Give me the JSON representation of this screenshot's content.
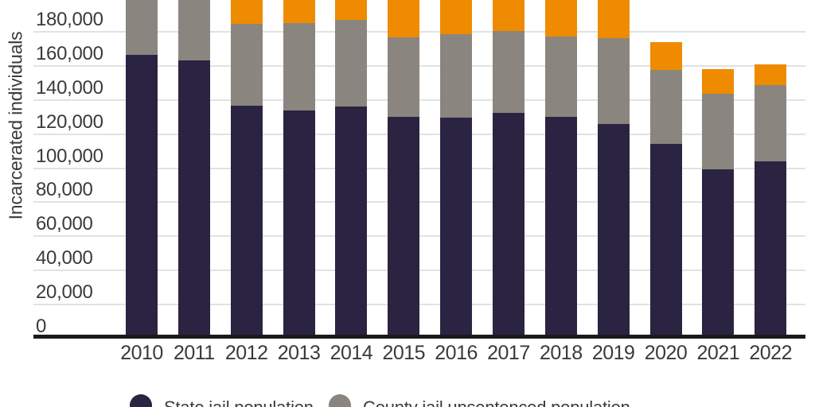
{
  "chart_data": {
    "type": "bar",
    "stacked": true,
    "title": "",
    "xlabel": "",
    "ylabel": "Incarcerated individuals",
    "categories": [
      "2010",
      "2011",
      "2012",
      "2013",
      "2014",
      "2015",
      "2016",
      "2017",
      "2018",
      "2019",
      "2020",
      "2021",
      "2022"
    ],
    "series": [
      {
        "name": "State jail population",
        "color": "#2a2342",
        "values": [
          166500,
          163000,
          136500,
          134000,
          136000,
          130000,
          129500,
          132500,
          130000,
          126000,
          114000,
          99500,
          104000
        ]
      },
      {
        "name": "County jail unsentenced population",
        "color": "#8a857f",
        "stack_top": [
          null,
          null,
          184500,
          185000,
          187000,
          176500,
          178500,
          180500,
          177000,
          176000,
          157500,
          143500,
          148500
        ]
      },
      {
        "name": "",
        "color": "#ee8b00",
        "stack_top": [
          null,
          null,
          null,
          null,
          null,
          null,
          null,
          null,
          null,
          null,
          174000,
          158000,
          161000
        ]
      }
    ],
    "yticks": [
      {
        "label": "0",
        "value": 0
      },
      {
        "label": "20,000",
        "value": 20000
      },
      {
        "label": "40,000",
        "value": 40000
      },
      {
        "label": "60,000",
        "value": 60000
      },
      {
        "label": "80,000",
        "value": 80000
      },
      {
        "label": "100,000",
        "value": 100000
      },
      {
        "label": "120,000",
        "value": 120000
      },
      {
        "label": "140,000",
        "value": 140000
      },
      {
        "label": "160,000",
        "value": 160000
      },
      {
        "label": "180,000",
        "value": 180000
      }
    ],
    "ylim": [
      0,
      200000
    ],
    "grid": "horizontal",
    "legend_position": "bottom",
    "crop_note": "image is cropped: segments with null stack_top extend past the top edge of the image; legend row is half cut by the bottom edge"
  },
  "colors": {
    "background": "#ffffff",
    "axis_line": "#1b1b1b",
    "gridline": "#e2e2e2",
    "text": "#3a3a3a"
  }
}
